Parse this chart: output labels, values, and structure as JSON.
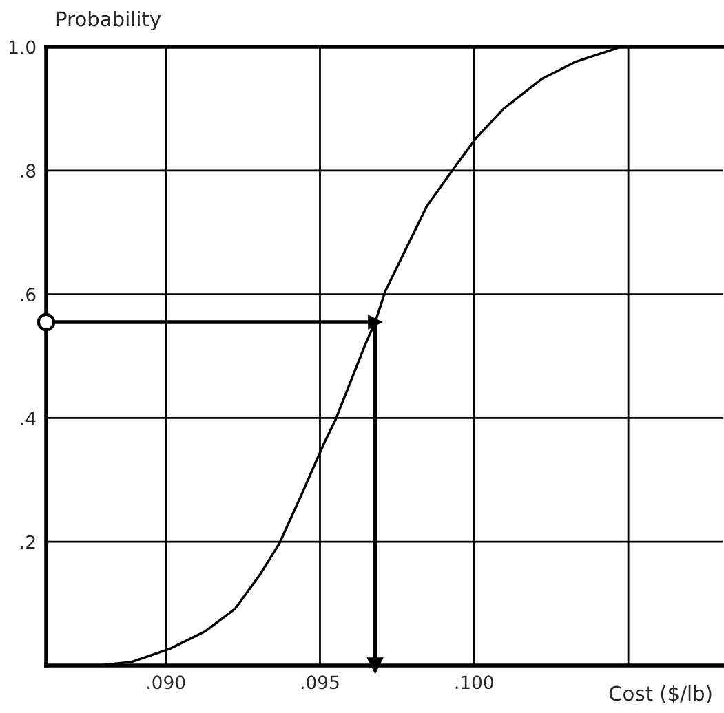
{
  "chart_data": {
    "type": "line",
    "xlabel": "Cost ($/lb)",
    "ylabel": "Probability",
    "series": [
      {
        "color": "#000000",
        "x": [
          0.08783,
          0.0889,
          0.09013,
          0.09127,
          0.09225,
          0.09304,
          0.09368,
          0.0944,
          0.09513,
          0.09551,
          0.09647,
          0.09679,
          0.09712,
          0.09846,
          0.09929,
          0.10007,
          0.10098,
          0.10219,
          0.1033,
          0.10464,
          0.1047
        ],
        "values": [
          0.0,
          0.006,
          0.027,
          0.055,
          0.092,
          0.146,
          0.197,
          0.276,
          0.359,
          0.398,
          0.519,
          0.555,
          0.605,
          0.742,
          0.8,
          0.853,
          0.901,
          0.948,
          0.976,
          0.998,
          1.0
        ]
      }
    ],
    "xlim": [
      0.08612,
      0.10808
    ],
    "ylim": [
      0,
      1.0
    ],
    "xticks": [
      {
        "value": 0.09,
        "label": ".090"
      },
      {
        "value": 0.095,
        "label": ".095"
      },
      {
        "value": 0.1,
        "label": ".100"
      },
      {
        "value": 0.105,
        "label": null
      }
    ],
    "yticks": [
      {
        "value": 0.2,
        "label": ".2"
      },
      {
        "value": 0.4,
        "label": ".4"
      },
      {
        "value": 0.6,
        "label": ".6"
      },
      {
        "value": 0.8,
        "label": ".8"
      },
      {
        "value": 1.0,
        "label": "1.0"
      }
    ],
    "ref_lines": [
      {
        "axis": "y",
        "value": 0.555,
        "color": "#000000"
      },
      {
        "axis": "x",
        "value": 0.09679,
        "color": "#000000"
      }
    ],
    "grid": true,
    "marker": "none",
    "line_style": "solid",
    "legend": false
  }
}
